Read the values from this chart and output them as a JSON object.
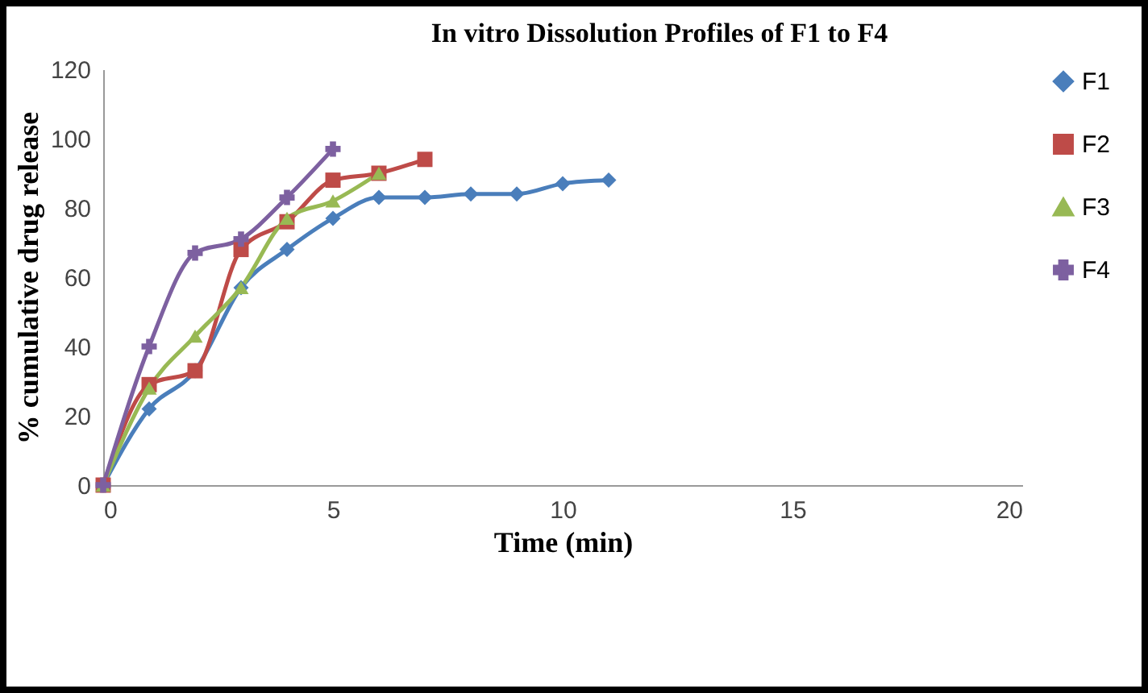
{
  "chart_data": {
    "type": "line",
    "title": "In vitro Dissolution  Profiles of F1 to F4",
    "xlabel": "Time (min)",
    "ylabel": "% cumulative drug release",
    "xlim": [
      0,
      20
    ],
    "xticks": [
      0,
      5,
      10,
      15,
      20
    ],
    "ylim": [
      0,
      120
    ],
    "yticks": [
      0,
      20,
      40,
      60,
      80,
      100,
      120
    ],
    "grid": false,
    "legend": "right",
    "series": [
      {
        "name": "F1",
        "color": "#4a7ebb",
        "marker": "diamond",
        "x": [
          0,
          1,
          2,
          3,
          4,
          5,
          6,
          7,
          8,
          9,
          10,
          11
        ],
        "values": [
          0,
          22,
          33,
          57,
          68,
          77,
          83,
          83,
          84,
          84,
          87,
          88
        ]
      },
      {
        "name": "F2",
        "color": "#be4b48",
        "marker": "square",
        "x": [
          0,
          1,
          2,
          3,
          4,
          5,
          6,
          7
        ],
        "values": [
          0,
          29,
          33,
          68,
          76,
          88,
          90,
          94
        ]
      },
      {
        "name": "F3",
        "color": "#98b954",
        "marker": "triangle",
        "x": [
          0,
          1,
          2,
          3,
          4,
          5,
          6
        ],
        "values": [
          0,
          28,
          43,
          57,
          77,
          82,
          90
        ]
      },
      {
        "name": "F4",
        "color": "#7d60a0",
        "marker": "cross",
        "x": [
          0,
          1,
          2,
          3,
          4,
          5
        ],
        "values": [
          0,
          40,
          67,
          71,
          83,
          97
        ]
      }
    ]
  }
}
